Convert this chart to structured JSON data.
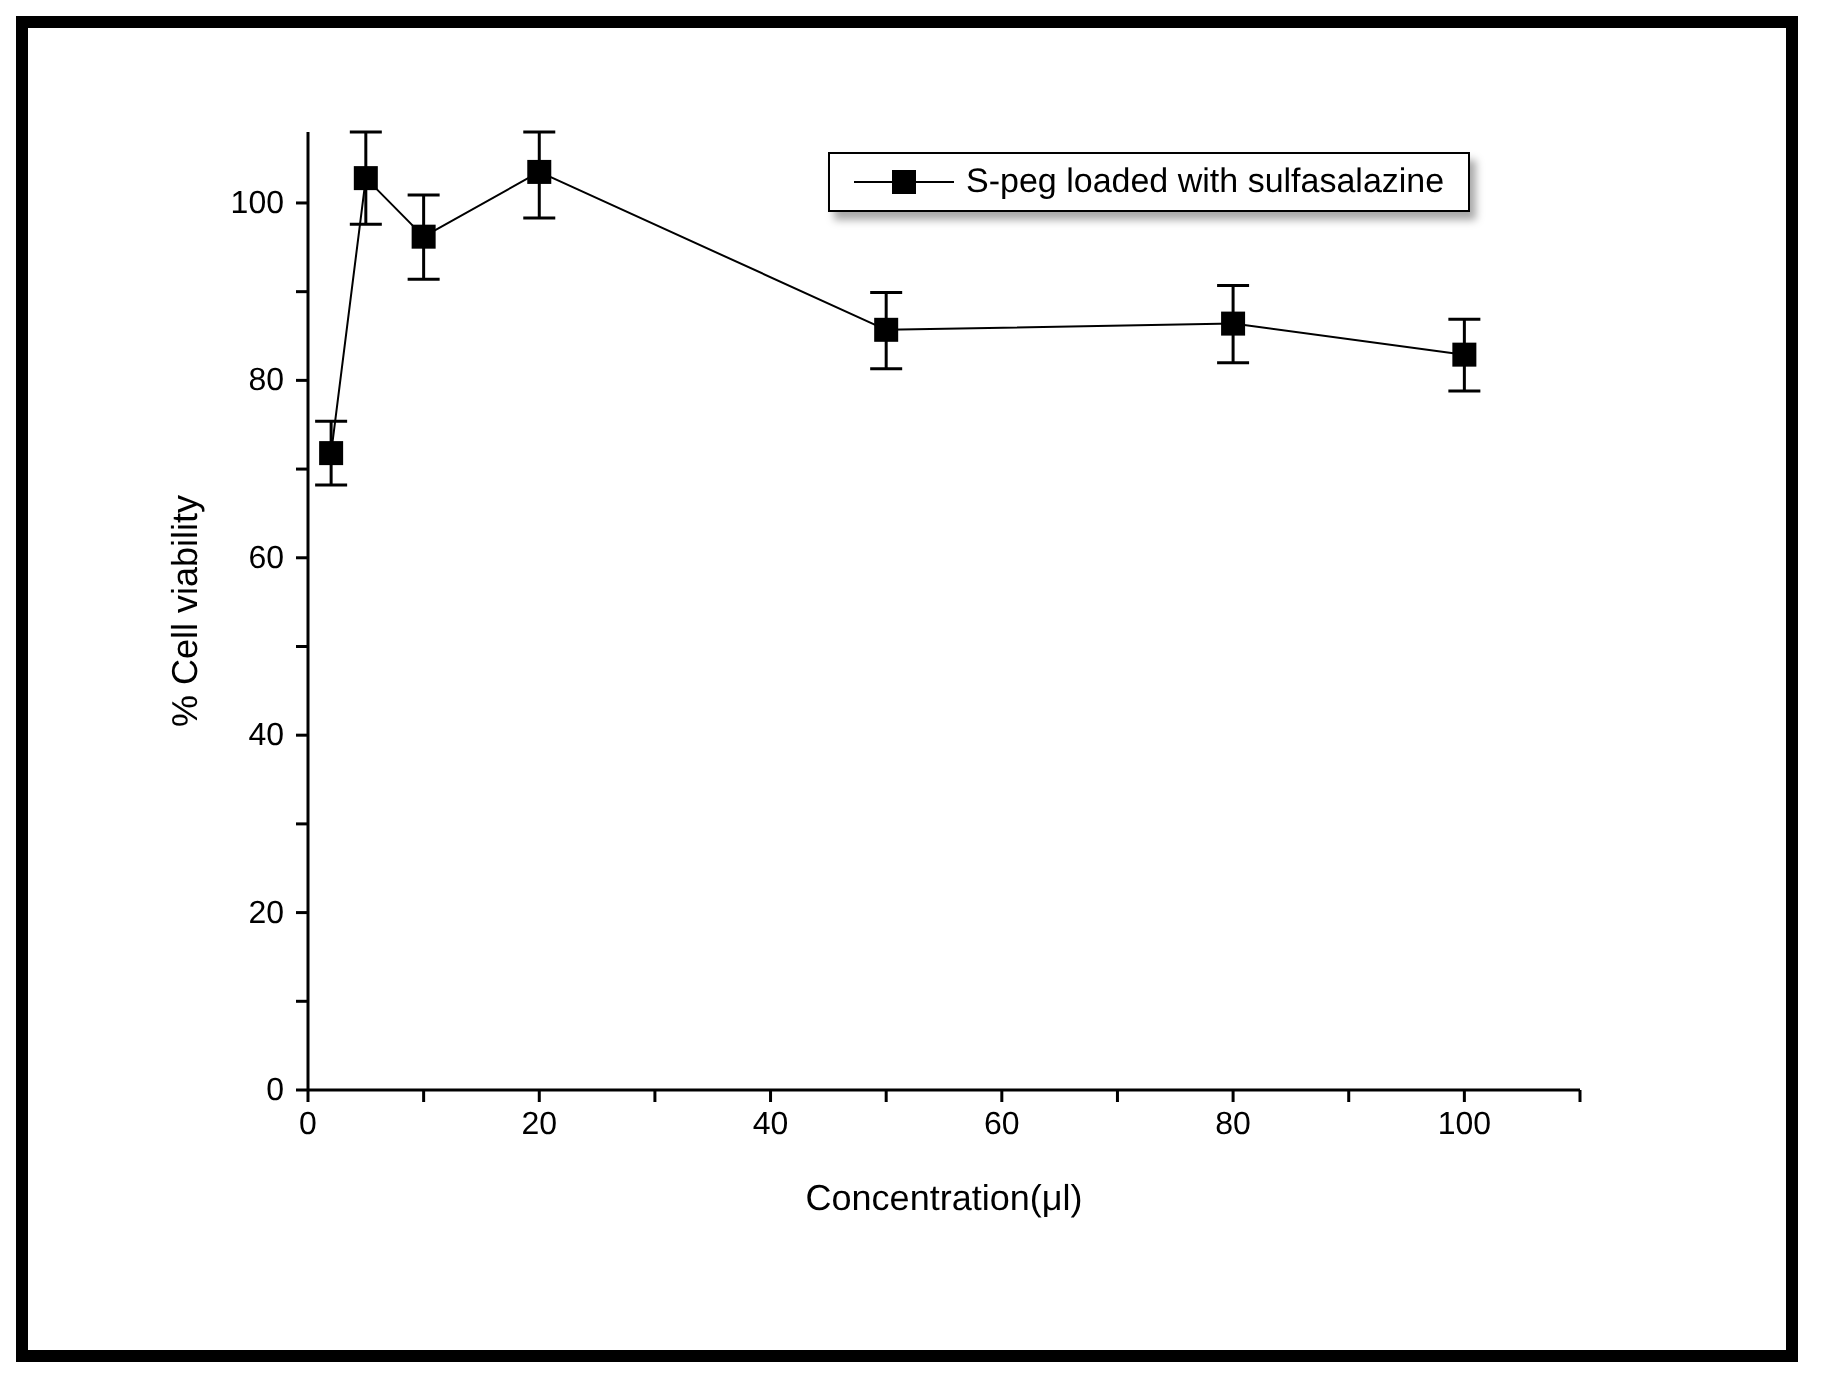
{
  "chart_data": {
    "type": "line",
    "xlabel": "Concentration(μl)",
    "ylabel": "% Cell viability",
    "x": [
      2,
      5,
      10,
      20,
      50,
      80,
      100
    ],
    "series": [
      {
        "name": "S-peg loaded with sulfasalazine",
        "color": "#000000",
        "values": [
          71.8,
          102.8,
          96.2,
          103.5,
          85.7,
          86.4,
          82.9
        ],
        "errors": [
          [
            68.2,
            75.4
          ],
          [
            97.6,
            108
          ],
          [
            91.4,
            100.9
          ],
          [
            98.3,
            108
          ],
          [
            81.3,
            89.9
          ],
          [
            82.0,
            90.7
          ],
          [
            78.8,
            86.9
          ]
        ]
      }
    ],
    "xlim": [
      0,
      110
    ],
    "xticks": [
      0,
      {
        "value": 10,
        "label": null
      },
      20,
      {
        "value": 30,
        "label": null
      },
      40,
      {
        "value": 50,
        "label": null
      },
      60,
      {
        "value": 70,
        "label": null
      },
      80,
      {
        "value": 90,
        "label": null
      },
      100,
      {
        "value": 110,
        "label": null
      }
    ],
    "ylim": [
      0,
      108
    ],
    "yticks": [
      0,
      {
        "value": 10,
        "label": null
      },
      20,
      {
        "value": 30,
        "label": null
      },
      40,
      {
        "value": 50,
        "label": null
      },
      60,
      {
        "value": 70,
        "label": null
      },
      80,
      {
        "value": 90,
        "label": null
      },
      100
    ],
    "grid": false,
    "legend": "top right",
    "marker": "square",
    "line_style": "solid"
  }
}
